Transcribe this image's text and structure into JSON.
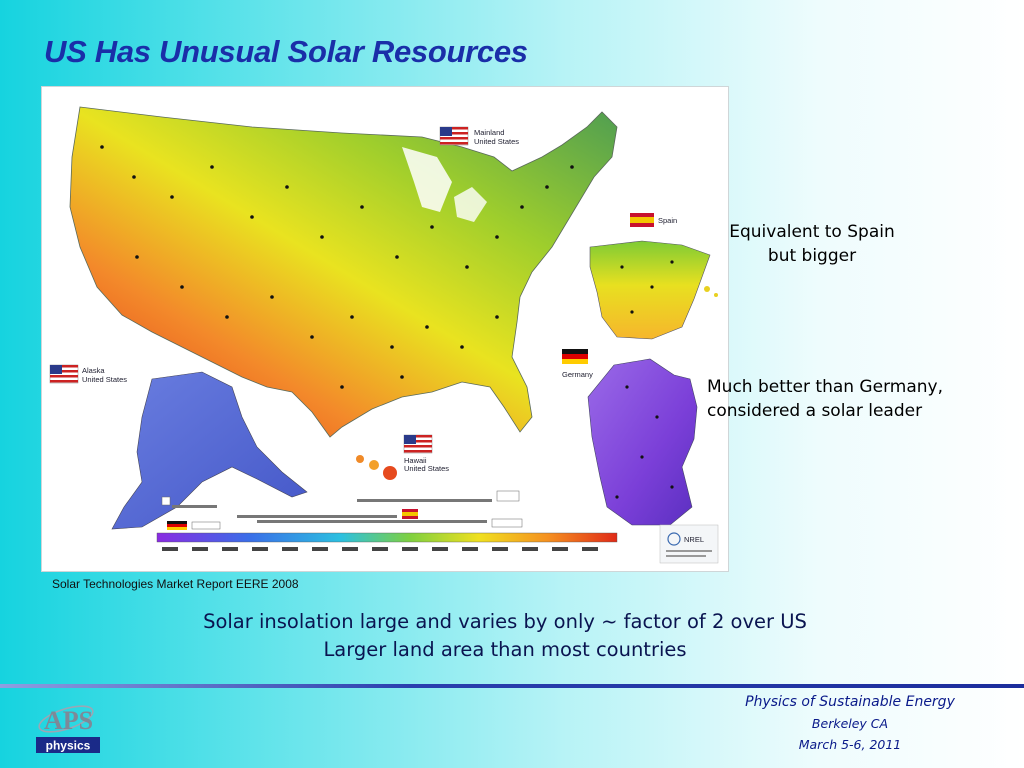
{
  "slide": {
    "title": "US Has Unusual Solar Resources"
  },
  "map": {
    "labels": {
      "mainland": [
        "Mainland",
        "United States"
      ],
      "alaska": [
        "Alaska",
        "United States"
      ],
      "hawaii": [
        "Hawaii",
        "United States"
      ],
      "spain": "Spain",
      "germany": "Germany",
      "logo": "NREL"
    },
    "colors": {
      "hot": "#e8301a",
      "warm": "#f59b20",
      "mid": "#e6e41e",
      "cool": "#8fcb2a",
      "cold": "#4aa24a",
      "germany": "#8a4fe0",
      "alaska": "#5a6fd8"
    }
  },
  "callouts": {
    "spain": [
      "Equivalent to Spain",
      "but bigger"
    ],
    "germany": [
      "Much better than Germany,",
      "considered a solar leader"
    ]
  },
  "source": "Solar Technologies Market Report EERE 2008",
  "summary": [
    "Solar insolation large and varies by only ~ factor of 2 over US",
    "Larger land area than most countries"
  ],
  "footer": {
    "event": "Physics of Sustainable Energy",
    "place": "Berkeley CA",
    "date": "March 5-6, 2011"
  },
  "logo": {
    "letters": "APS",
    "word": "physics"
  }
}
